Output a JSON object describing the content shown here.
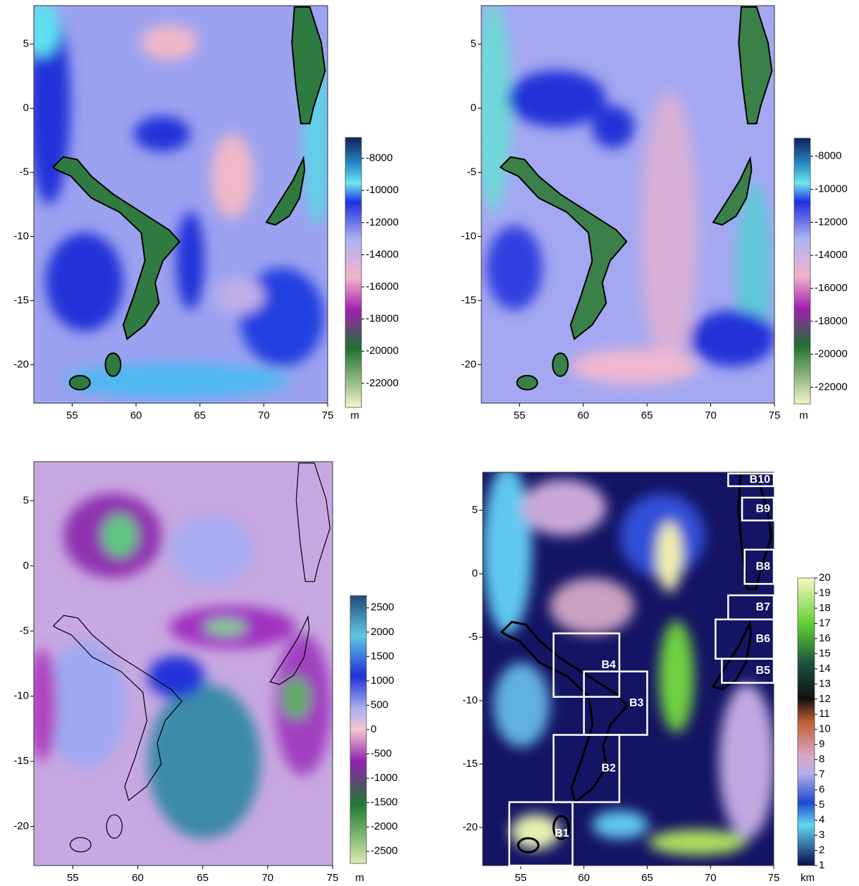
{
  "chart_data": [
    {
      "type": "heatmap",
      "xlim": [
        52,
        75
      ],
      "ylim": [
        -23,
        8
      ],
      "xticks": [
        55,
        60,
        65,
        70,
        75
      ],
      "yticks": [
        5,
        0,
        -5,
        -10,
        -15,
        -20
      ],
      "colorbar": {
        "lim": [
          -23500,
          -6700
        ],
        "ticks": [
          -8000,
          -10000,
          -12000,
          -14000,
          -16000,
          -18000,
          -20000,
          -22000
        ],
        "unit": "m"
      }
    },
    {
      "type": "heatmap",
      "xlim": [
        52,
        75
      ],
      "ylim": [
        -23,
        8
      ],
      "xticks": [
        55,
        60,
        65,
        70,
        75
      ],
      "yticks": [
        5,
        0,
        -5,
        -10,
        -15,
        -20
      ],
      "colorbar": {
        "lim": [
          -23000,
          -6900
        ],
        "ticks": [
          -8000,
          -10000,
          -12000,
          -14000,
          -16000,
          -18000,
          -20000,
          -22000
        ],
        "unit": "m"
      }
    },
    {
      "type": "heatmap",
      "xlim": [
        52,
        75
      ],
      "ylim": [
        -23,
        8
      ],
      "xticks": [
        55,
        60,
        65,
        70,
        75
      ],
      "yticks": [
        5,
        0,
        -5,
        -10,
        -15,
        -20
      ],
      "colorbar": {
        "lim": [
          -2750,
          2750
        ],
        "ticks": [
          2500,
          2000,
          1500,
          1000,
          500,
          0,
          -500,
          -1000,
          -1500,
          -2000,
          -2500
        ],
        "unit": "m"
      }
    },
    {
      "type": "heatmap",
      "xlim": [
        52,
        75
      ],
      "ylim": [
        -23,
        8
      ],
      "xticks": [
        55,
        60,
        65,
        70,
        75
      ],
      "yticks": [
        5,
        0,
        -5,
        -10,
        -15,
        -20
      ],
      "colorbar": {
        "lim": [
          1,
          20
        ],
        "ticks": [
          20,
          19,
          18,
          17,
          16,
          15,
          14,
          13,
          12,
          11,
          10,
          9,
          8,
          7,
          6,
          5,
          4,
          3,
          2,
          1
        ],
        "unit": "km"
      },
      "boxes": [
        {
          "label": "B1",
          "x": [
            54.1,
            59.1
          ],
          "y": [
            -23,
            -18
          ]
        },
        {
          "label": "B2",
          "x": [
            57.6,
            62.8
          ],
          "y": [
            -18,
            -12.7
          ]
        },
        {
          "label": "B3",
          "x": [
            60,
            65
          ],
          "y": [
            -12.7,
            -7.7
          ]
        },
        {
          "label": "B4",
          "x": [
            57.6,
            62.8
          ],
          "y": [
            -9.7,
            -4.7
          ]
        },
        {
          "label": "B5",
          "x": [
            70.9,
            75
          ],
          "y": [
            -8.6,
            -6.7
          ]
        },
        {
          "label": "B6",
          "x": [
            70.4,
            75
          ],
          "y": [
            -6.7,
            -3.6
          ]
        },
        {
          "label": "B7",
          "x": [
            71.4,
            75
          ],
          "y": [
            -3.6,
            -1.7
          ]
        },
        {
          "label": "B8",
          "x": [
            72.7,
            75
          ],
          "y": [
            -0.8,
            1.9
          ]
        },
        {
          "label": "B9",
          "x": [
            72.5,
            75
          ],
          "y": [
            4.2,
            6
          ]
        },
        {
          "label": "B10",
          "x": [
            71.4,
            75
          ],
          "y": [
            6.9,
            7.9
          ]
        }
      ]
    }
  ]
}
